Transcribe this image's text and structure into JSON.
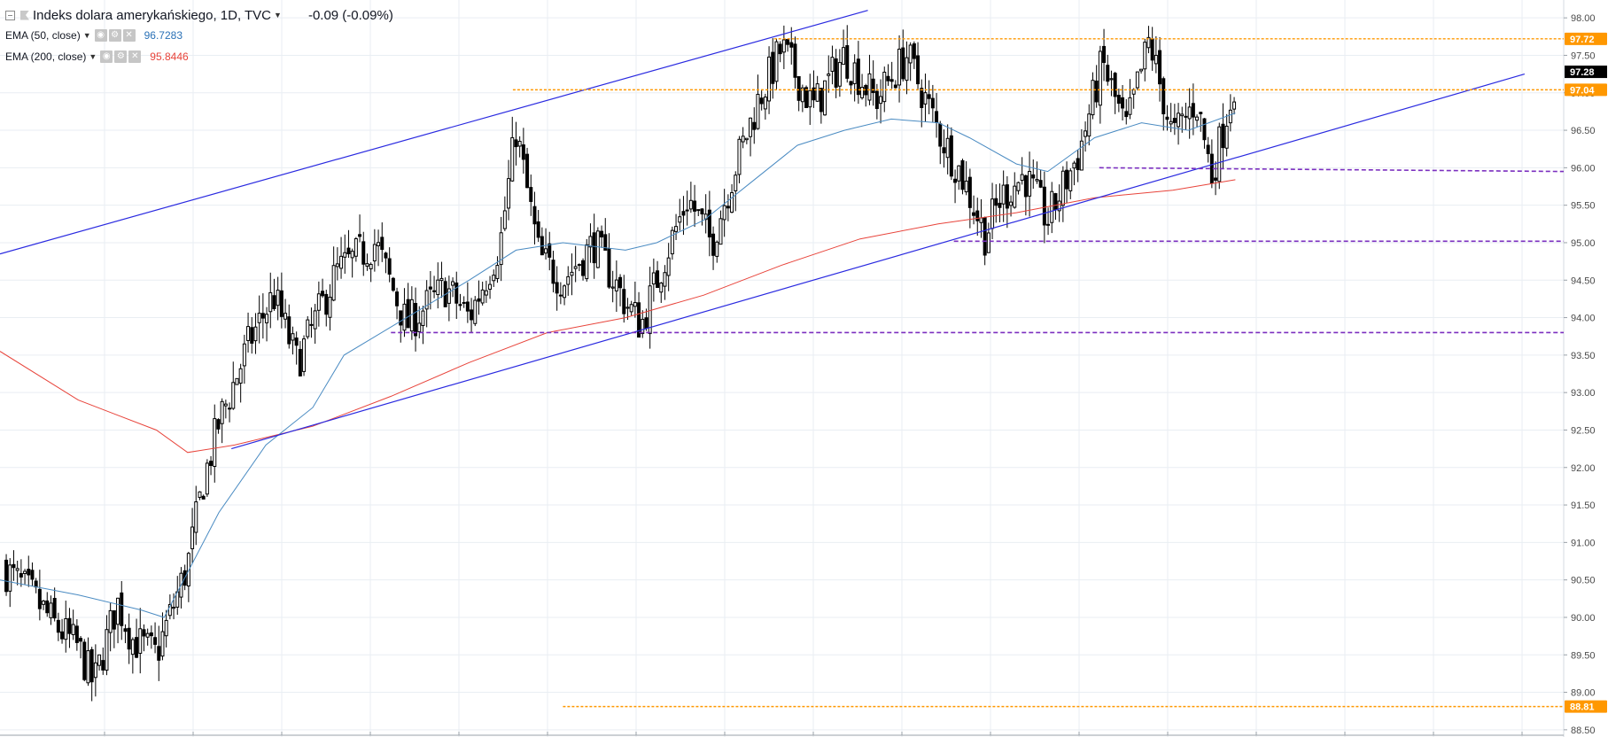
{
  "legend": {
    "symbol": "Indeks dolara amerykańskiego, 1D, TVC",
    "change": "-0.09 (-0.09%)",
    "ema50": {
      "label": "EMA (50, close)",
      "value": "96.7283",
      "color": "#2a71b6"
    },
    "ema200": {
      "label": "EMA (200, close)",
      "value": "95.8446",
      "color": "#e8443b"
    }
  },
  "colors": {
    "candle": "#000000",
    "ema50": "#4a8bc2",
    "ema200": "#e8443b",
    "trendline": "#2a2ae0",
    "orange_level": "#ff9800",
    "purple_level": "#7b2fbf",
    "grid": "#e9eef3"
  },
  "chart_data": {
    "type": "candlestick",
    "title": "Indeks dolara amerykańskiego, 1D, TVC",
    "ylim": [
      88.5,
      98.1
    ],
    "y_ticks": [
      "98.00",
      "97.50",
      "97.00",
      "96.50",
      "96.00",
      "95.50",
      "95.00",
      "94.50",
      "94.00",
      "93.50",
      "93.00",
      "92.50",
      "92.00",
      "91.50",
      "91.00",
      "90.50",
      "90.00",
      "89.50",
      "89.00",
      "88.50"
    ],
    "grid": true,
    "last_price": 97.28,
    "last_price_label": "97.28",
    "close_path": [
      [
        0,
        90.7
      ],
      [
        0.02,
        90.3
      ],
      [
        0.035,
        89.9
      ],
      [
        0.05,
        89.6
      ],
      [
        0.06,
        89.1
      ],
      [
        0.075,
        90.2
      ],
      [
        0.085,
        89.7
      ],
      [
        0.1,
        89.5
      ],
      [
        0.12,
        90.7
      ],
      [
        0.13,
        91.8
      ],
      [
        0.14,
        92.6
      ],
      [
        0.16,
        93.7
      ],
      [
        0.175,
        94.3
      ],
      [
        0.19,
        93.4
      ],
      [
        0.215,
        94.6
      ],
      [
        0.24,
        95.0
      ],
      [
        0.26,
        93.9
      ],
      [
        0.285,
        94.4
      ],
      [
        0.3,
        94.0
      ],
      [
        0.32,
        95.0
      ],
      [
        0.33,
        96.5
      ],
      [
        0.345,
        94.8
      ],
      [
        0.36,
        94.5
      ],
      [
        0.38,
        95.0
      ],
      [
        0.4,
        94.2
      ],
      [
        0.41,
        93.9
      ],
      [
        0.425,
        94.8
      ],
      [
        0.44,
        95.6
      ],
      [
        0.455,
        95.0
      ],
      [
        0.47,
        96.0
      ],
      [
        0.485,
        96.9
      ],
      [
        0.5,
        97.6
      ],
      [
        0.52,
        96.8
      ],
      [
        0.54,
        97.5
      ],
      [
        0.56,
        96.9
      ],
      [
        0.58,
        97.5
      ],
      [
        0.6,
        96.5
      ],
      [
        0.615,
        95.9
      ],
      [
        0.63,
        95.1
      ],
      [
        0.64,
        95.6
      ],
      [
        0.655,
        95.9
      ],
      [
        0.67,
        95.3
      ],
      [
        0.69,
        96.2
      ],
      [
        0.705,
        97.4
      ],
      [
        0.72,
        96.5
      ],
      [
        0.735,
        97.7
      ],
      [
        0.75,
        96.4
      ],
      [
        0.765,
        96.9
      ],
      [
        0.775,
        95.9
      ],
      [
        0.79,
        97.2
      ]
    ],
    "ema50": [
      [
        0,
        90.5
      ],
      [
        0.05,
        90.3
      ],
      [
        0.09,
        90.1
      ],
      [
        0.105,
        90.0
      ],
      [
        0.12,
        90.6
      ],
      [
        0.14,
        91.4
      ],
      [
        0.17,
        92.3
      ],
      [
        0.2,
        92.8
      ],
      [
        0.22,
        93.5
      ],
      [
        0.26,
        94.0
      ],
      [
        0.3,
        94.5
      ],
      [
        0.33,
        94.9
      ],
      [
        0.36,
        95.0
      ],
      [
        0.4,
        94.9
      ],
      [
        0.42,
        95.0
      ],
      [
        0.45,
        95.3
      ],
      [
        0.48,
        95.8
      ],
      [
        0.51,
        96.3
      ],
      [
        0.54,
        96.5
      ],
      [
        0.57,
        96.65
      ],
      [
        0.6,
        96.6
      ],
      [
        0.62,
        96.4
      ],
      [
        0.65,
        96.05
      ],
      [
        0.67,
        95.95
      ],
      [
        0.7,
        96.4
      ],
      [
        0.73,
        96.6
      ],
      [
        0.76,
        96.5
      ],
      [
        0.79,
        96.73
      ]
    ],
    "ema200": [
      [
        0,
        93.55
      ],
      [
        0.05,
        92.9
      ],
      [
        0.1,
        92.5
      ],
      [
        0.12,
        92.2
      ],
      [
        0.15,
        92.3
      ],
      [
        0.2,
        92.55
      ],
      [
        0.25,
        92.95
      ],
      [
        0.3,
        93.4
      ],
      [
        0.35,
        93.8
      ],
      [
        0.4,
        94.0
      ],
      [
        0.45,
        94.3
      ],
      [
        0.5,
        94.7
      ],
      [
        0.55,
        95.05
      ],
      [
        0.6,
        95.25
      ],
      [
        0.65,
        95.4
      ],
      [
        0.7,
        95.6
      ],
      [
        0.75,
        95.7
      ],
      [
        0.79,
        95.84
      ]
    ],
    "levels": [
      {
        "price": 97.72,
        "label": "97.72",
        "style": "orange",
        "from": 0.495
      },
      {
        "price": 97.04,
        "label": "97.04",
        "style": "orange",
        "from": 0.328
      },
      {
        "price": 88.81,
        "label": "88.81",
        "style": "orange",
        "from": 0.36
      },
      {
        "price": 96.0,
        "label": "",
        "style": "purple",
        "from": 0.703,
        "price_end": 95.95
      },
      {
        "price": 95.02,
        "label": "",
        "style": "purple",
        "from": 0.61
      },
      {
        "price": 93.8,
        "label": "",
        "style": "purple",
        "from": 0.25
      }
    ],
    "trendlines": [
      {
        "from": [
          0,
          94.85
        ],
        "to": [
          0.555,
          98.1
        ]
      },
      {
        "from": [
          0.148,
          92.25
        ],
        "to": [
          0.975,
          97.25
        ]
      }
    ]
  }
}
